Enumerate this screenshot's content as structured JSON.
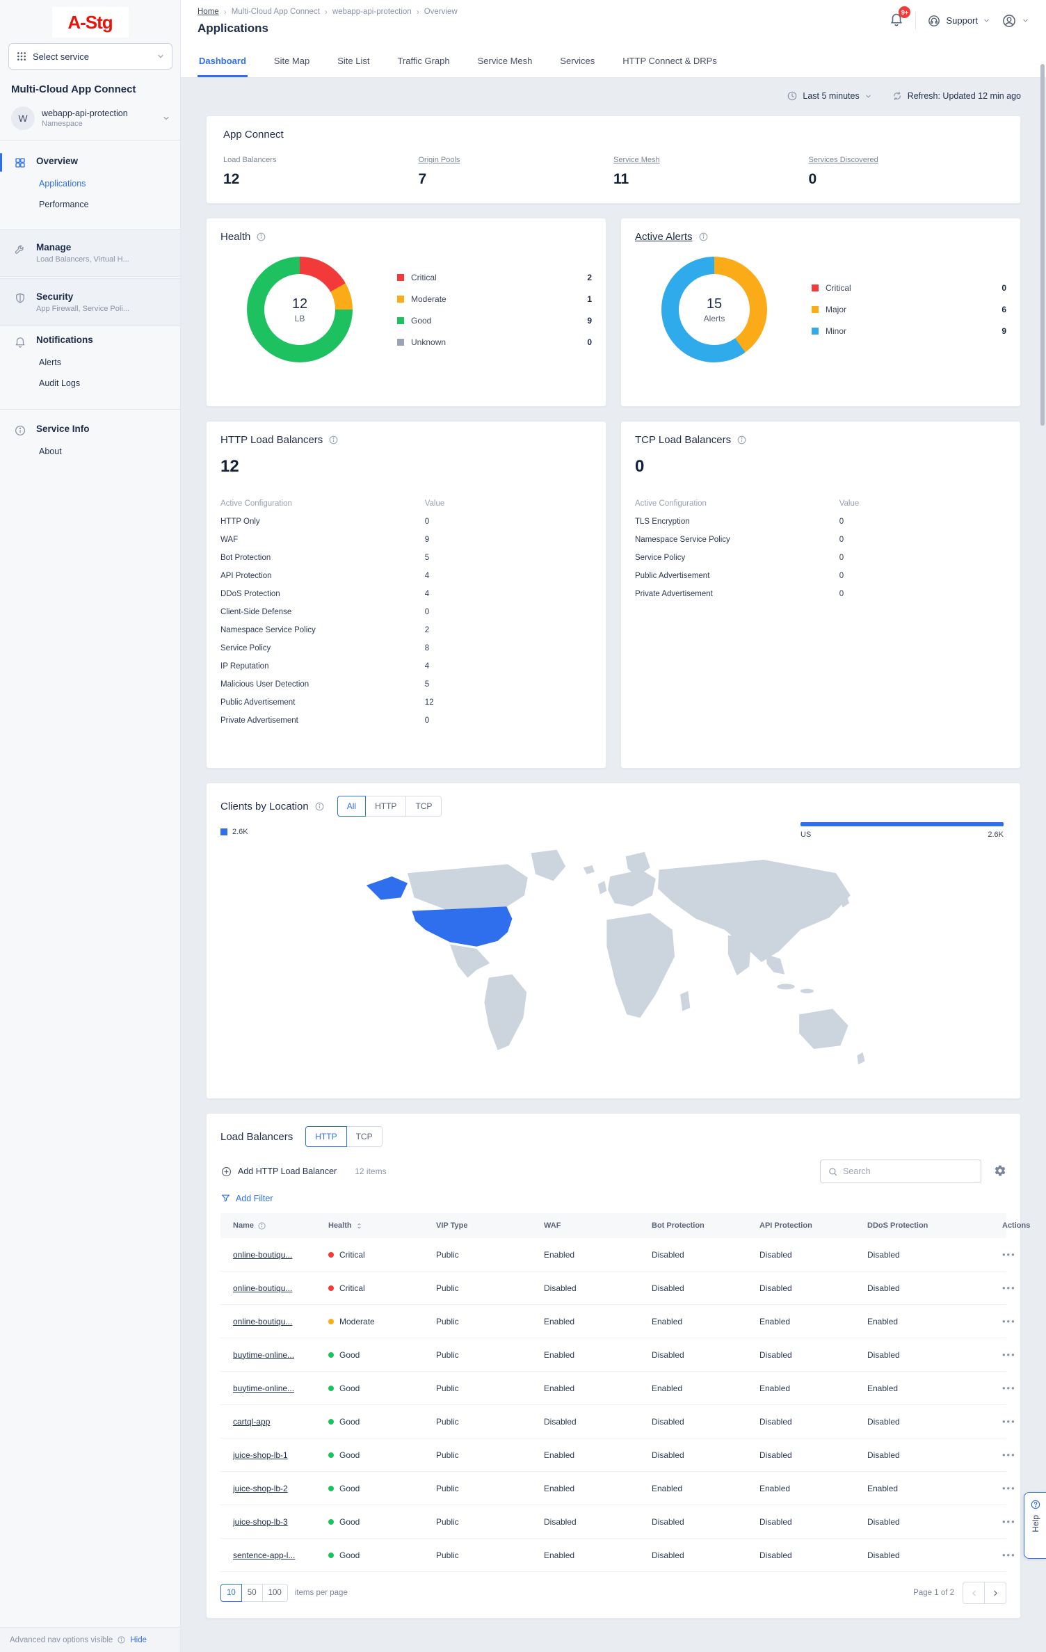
{
  "colors": {
    "accent": "#2f6fed",
    "critical": "#f23a3a",
    "moderate": "#fbab17",
    "good": "#1ec15f",
    "unknown": "#9aa3b5",
    "minor": "#2fabec",
    "land": "#ccd4de",
    "brand_red": "#e8140c"
  },
  "sidebar": {
    "logo": "A-Stg",
    "select_service": "Select service",
    "product_title": "Multi-Cloud App Connect",
    "namespace": {
      "initial": "W",
      "name": "webapp-api-protection",
      "label": "Namespace"
    },
    "nav": [
      {
        "id": "overview",
        "label": "Overview",
        "icon": "grid",
        "active": true,
        "children": [
          {
            "label": "Applications",
            "active": true
          },
          {
            "label": "Performance"
          }
        ]
      },
      {
        "id": "manage",
        "label": "Manage",
        "icon": "wrench",
        "subtitle": "Load Balancers, Virtual H...",
        "boxed": true
      },
      {
        "id": "security",
        "label": "Security",
        "icon": "shield",
        "subtitle": "App Firewall, Service Poli...",
        "boxed": true
      },
      {
        "id": "notifications",
        "label": "Notifications",
        "icon": "bell",
        "children": [
          {
            "label": "Alerts"
          },
          {
            "label": "Audit Logs"
          }
        ]
      },
      {
        "id": "service-info",
        "label": "Service Info",
        "icon": "info",
        "divider": true,
        "children": [
          {
            "label": "About"
          }
        ]
      }
    ],
    "footer": {
      "text": "Advanced nav options visible",
      "action": "Hide"
    }
  },
  "header": {
    "breadcrumb": [
      "Home",
      "Multi-Cloud App Connect",
      "webapp-api-protection",
      "Overview"
    ],
    "title": "Applications",
    "notification_badge": "9+",
    "support_label": "Support"
  },
  "tabs": {
    "active": "Dashboard",
    "items": [
      "Dashboard",
      "Site Map",
      "Site List",
      "Traffic Graph",
      "Service Mesh",
      "Services",
      "HTTP Connect & DRPs"
    ]
  },
  "toolbar": {
    "time_range": "Last 5 minutes",
    "refresh": "Refresh: Updated 12 min ago"
  },
  "app_connect": {
    "title": "App Connect",
    "stats": [
      {
        "label": "Load Balancers",
        "value": "12",
        "link": false
      },
      {
        "label": "Origin Pools",
        "value": "7",
        "link": true
      },
      {
        "label": "Service Mesh",
        "value": "11",
        "link": true
      },
      {
        "label": "Services Discovered",
        "value": "0",
        "link": true
      }
    ]
  },
  "health_card": {
    "title": "Health",
    "center_value": "12",
    "center_label": "LB",
    "segments": [
      {
        "label": "Critical",
        "value": 2,
        "color": "#f23a3a"
      },
      {
        "label": "Moderate",
        "value": 1,
        "color": "#fbab17"
      },
      {
        "label": "Good",
        "value": 9,
        "color": "#1ec15f"
      },
      {
        "label": "Unknown",
        "value": 0,
        "color": "#9aa3b5"
      }
    ]
  },
  "alerts_card": {
    "title": "Active Alerts",
    "center_value": "15",
    "center_label": "Alerts",
    "segments": [
      {
        "label": "Critical",
        "value": 0,
        "color": "#f23a3a"
      },
      {
        "label": "Major",
        "value": 6,
        "color": "#fbab17"
      },
      {
        "label": "Minor",
        "value": 9,
        "color": "#2fabec"
      }
    ]
  },
  "http_lb_card": {
    "title": "HTTP Load Balancers",
    "count": "12",
    "config_header": "Active Configuration",
    "value_header": "Value",
    "rows": [
      {
        "label": "HTTP Only",
        "value": "0"
      },
      {
        "label": "WAF",
        "value": "9"
      },
      {
        "label": "Bot Protection",
        "value": "5"
      },
      {
        "label": "API Protection",
        "value": "4"
      },
      {
        "label": "DDoS Protection",
        "value": "4"
      },
      {
        "label": "Client-Side Defense",
        "value": "0"
      },
      {
        "label": "Namespace Service Policy",
        "value": "2"
      },
      {
        "label": "Service Policy",
        "value": "8"
      },
      {
        "label": "IP Reputation",
        "value": "4"
      },
      {
        "label": "Malicious User Detection",
        "value": "5"
      },
      {
        "label": "Public Advertisement",
        "value": "12"
      },
      {
        "label": "Private Advertisement",
        "value": "0"
      }
    ]
  },
  "tcp_lb_card": {
    "title": "TCP Load Balancers",
    "count": "0",
    "config_header": "Active Configuration",
    "value_header": "Value",
    "rows": [
      {
        "label": "TLS Encryption",
        "value": "0"
      },
      {
        "label": "Namespace Service Policy",
        "value": "0"
      },
      {
        "label": "Service Policy",
        "value": "0"
      },
      {
        "label": "Public Advertisement",
        "value": "0"
      },
      {
        "label": "Private Advertisement",
        "value": "0"
      }
    ]
  },
  "clients_card": {
    "title": "Clients by Location",
    "filters": [
      "All",
      "HTTP",
      "TCP"
    ],
    "active_filter": "All",
    "legend_value": "2.6K",
    "highlighted_country": "US",
    "bars": [
      {
        "label": "US",
        "value": "2.6K"
      }
    ]
  },
  "lb_section": {
    "title": "Load Balancers",
    "tabs": [
      "HTTP",
      "TCP"
    ],
    "active_tab": "HTTP",
    "add_button": "Add HTTP Load Balancer",
    "items_count": "12 items",
    "search_placeholder": "Search",
    "add_filter": "Add Filter",
    "columns": [
      "Name",
      "Health",
      "VIP Type",
      "WAF",
      "Bot Protection",
      "API Protection",
      "DDoS Protection",
      "Actions"
    ],
    "rows": [
      {
        "name": "online-boutiqu...",
        "health": "Critical",
        "level": "critical",
        "vip": "Public",
        "waf": "Enabled",
        "bot": "Disabled",
        "api": "Disabled",
        "ddos": "Disabled"
      },
      {
        "name": "online-boutiqu...",
        "health": "Critical",
        "level": "critical",
        "vip": "Public",
        "waf": "Disabled",
        "bot": "Disabled",
        "api": "Disabled",
        "ddos": "Disabled"
      },
      {
        "name": "online-boutiqu...",
        "health": "Moderate",
        "level": "moderate",
        "vip": "Public",
        "waf": "Enabled",
        "bot": "Enabled",
        "api": "Enabled",
        "ddos": "Enabled"
      },
      {
        "name": "buytime-online...",
        "health": "Good",
        "level": "good",
        "vip": "Public",
        "waf": "Enabled",
        "bot": "Disabled",
        "api": "Disabled",
        "ddos": "Disabled"
      },
      {
        "name": "buytime-online...",
        "health": "Good",
        "level": "good",
        "vip": "Public",
        "waf": "Enabled",
        "bot": "Enabled",
        "api": "Enabled",
        "ddos": "Enabled"
      },
      {
        "name": "cartql-app",
        "health": "Good",
        "level": "good",
        "vip": "Public",
        "waf": "Disabled",
        "bot": "Disabled",
        "api": "Disabled",
        "ddos": "Disabled"
      },
      {
        "name": "juice-shop-lb-1",
        "health": "Good",
        "level": "good",
        "vip": "Public",
        "waf": "Enabled",
        "bot": "Disabled",
        "api": "Disabled",
        "ddos": "Disabled"
      },
      {
        "name": "juice-shop-lb-2",
        "health": "Good",
        "level": "good",
        "vip": "Public",
        "waf": "Enabled",
        "bot": "Enabled",
        "api": "Enabled",
        "ddos": "Enabled"
      },
      {
        "name": "juice-shop-lb-3",
        "health": "Good",
        "level": "good",
        "vip": "Public",
        "waf": "Disabled",
        "bot": "Disabled",
        "api": "Disabled",
        "ddos": "Disabled"
      },
      {
        "name": "sentence-app-l...",
        "health": "Good",
        "level": "good",
        "vip": "Public",
        "waf": "Enabled",
        "bot": "Disabled",
        "api": "Disabled",
        "ddos": "Disabled"
      }
    ],
    "pagination": {
      "sizes": [
        "10",
        "50",
        "100"
      ],
      "active_size": "10",
      "label": "items per page",
      "page_label": "Page 1 of 2"
    }
  },
  "help_tab": "Help",
  "chart_data": [
    {
      "type": "pie",
      "title": "Health",
      "labels": [
        "Critical",
        "Moderate",
        "Good",
        "Unknown"
      ],
      "values": [
        2,
        1,
        9,
        0
      ],
      "colors": [
        "#f23a3a",
        "#fbab17",
        "#1ec15f",
        "#9aa3b5"
      ],
      "center_text": "12 LB",
      "legend_position": "right"
    },
    {
      "type": "pie",
      "title": "Active Alerts",
      "labels": [
        "Critical",
        "Major",
        "Minor"
      ],
      "values": [
        0,
        6,
        9
      ],
      "colors": [
        "#f23a3a",
        "#fbab17",
        "#2fabec"
      ],
      "center_text": "15 Alerts",
      "legend_position": "right"
    },
    {
      "type": "bar",
      "title": "Clients by Location",
      "categories": [
        "US"
      ],
      "values": [
        2600
      ],
      "value_labels": [
        "2.6K"
      ],
      "orientation": "horizontal",
      "color": "#2f6fed"
    }
  ]
}
